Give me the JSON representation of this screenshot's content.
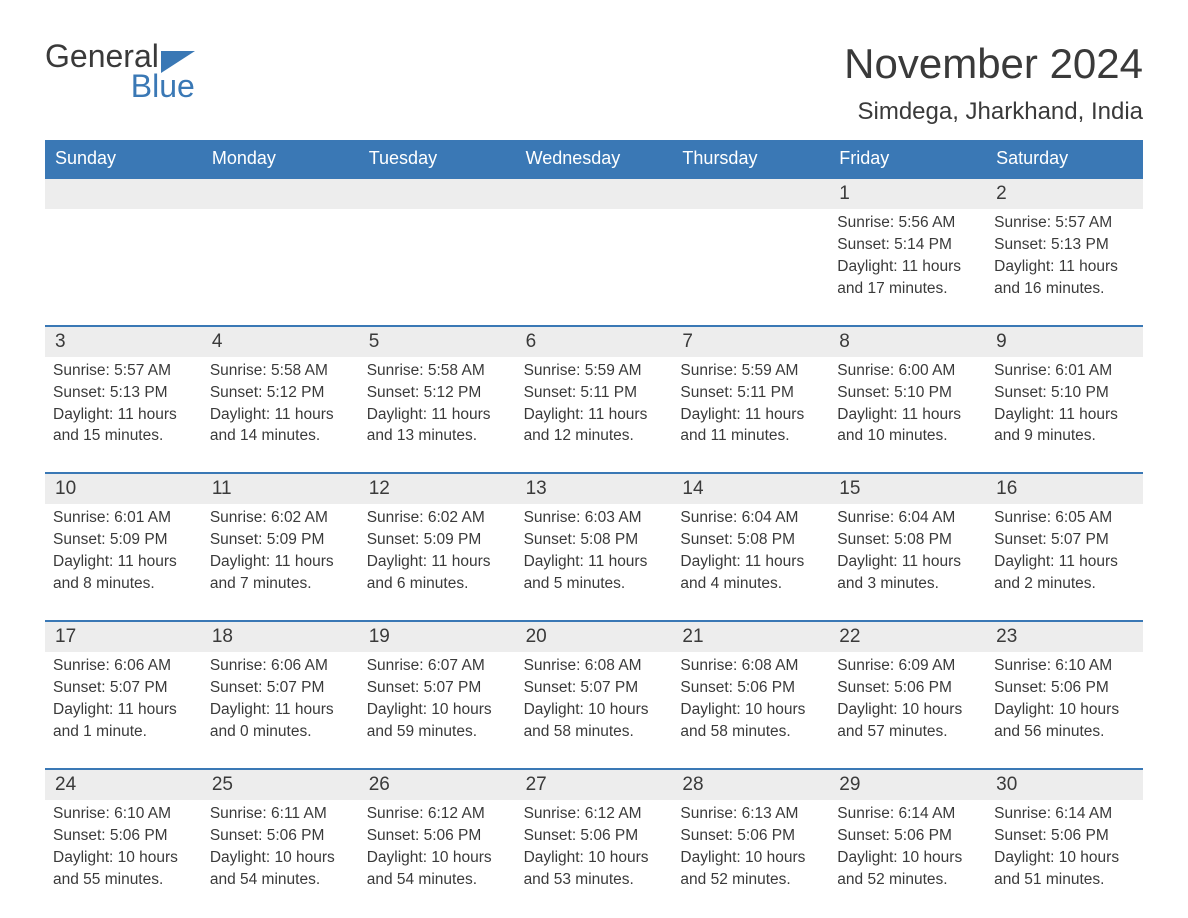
{
  "logo": {
    "word1": "General",
    "word2": "Blue",
    "icon_color": "#3a78b5"
  },
  "title": "November 2024",
  "location": "Simdega, Jharkhand, India",
  "colors": {
    "header_bg": "#3a78b5",
    "header_text": "#ffffff",
    "daynum_bg": "#ededed",
    "text": "#3a3a3a",
    "week_border": "#3a78b5",
    "page_bg": "#ffffff"
  },
  "day_names": [
    "Sunday",
    "Monday",
    "Tuesday",
    "Wednesday",
    "Thursday",
    "Friday",
    "Saturday"
  ],
  "weeks": [
    [
      null,
      null,
      null,
      null,
      null,
      {
        "n": "1",
        "sr": "Sunrise: 5:56 AM",
        "ss": "Sunset: 5:14 PM",
        "d1": "Daylight: 11 hours",
        "d2": "and 17 minutes."
      },
      {
        "n": "2",
        "sr": "Sunrise: 5:57 AM",
        "ss": "Sunset: 5:13 PM",
        "d1": "Daylight: 11 hours",
        "d2": "and 16 minutes."
      }
    ],
    [
      {
        "n": "3",
        "sr": "Sunrise: 5:57 AM",
        "ss": "Sunset: 5:13 PM",
        "d1": "Daylight: 11 hours",
        "d2": "and 15 minutes."
      },
      {
        "n": "4",
        "sr": "Sunrise: 5:58 AM",
        "ss": "Sunset: 5:12 PM",
        "d1": "Daylight: 11 hours",
        "d2": "and 14 minutes."
      },
      {
        "n": "5",
        "sr": "Sunrise: 5:58 AM",
        "ss": "Sunset: 5:12 PM",
        "d1": "Daylight: 11 hours",
        "d2": "and 13 minutes."
      },
      {
        "n": "6",
        "sr": "Sunrise: 5:59 AM",
        "ss": "Sunset: 5:11 PM",
        "d1": "Daylight: 11 hours",
        "d2": "and 12 minutes."
      },
      {
        "n": "7",
        "sr": "Sunrise: 5:59 AM",
        "ss": "Sunset: 5:11 PM",
        "d1": "Daylight: 11 hours",
        "d2": "and 11 minutes."
      },
      {
        "n": "8",
        "sr": "Sunrise: 6:00 AM",
        "ss": "Sunset: 5:10 PM",
        "d1": "Daylight: 11 hours",
        "d2": "and 10 minutes."
      },
      {
        "n": "9",
        "sr": "Sunrise: 6:01 AM",
        "ss": "Sunset: 5:10 PM",
        "d1": "Daylight: 11 hours",
        "d2": "and 9 minutes."
      }
    ],
    [
      {
        "n": "10",
        "sr": "Sunrise: 6:01 AM",
        "ss": "Sunset: 5:09 PM",
        "d1": "Daylight: 11 hours",
        "d2": "and 8 minutes."
      },
      {
        "n": "11",
        "sr": "Sunrise: 6:02 AM",
        "ss": "Sunset: 5:09 PM",
        "d1": "Daylight: 11 hours",
        "d2": "and 7 minutes."
      },
      {
        "n": "12",
        "sr": "Sunrise: 6:02 AM",
        "ss": "Sunset: 5:09 PM",
        "d1": "Daylight: 11 hours",
        "d2": "and 6 minutes."
      },
      {
        "n": "13",
        "sr": "Sunrise: 6:03 AM",
        "ss": "Sunset: 5:08 PM",
        "d1": "Daylight: 11 hours",
        "d2": "and 5 minutes."
      },
      {
        "n": "14",
        "sr": "Sunrise: 6:04 AM",
        "ss": "Sunset: 5:08 PM",
        "d1": "Daylight: 11 hours",
        "d2": "and 4 minutes."
      },
      {
        "n": "15",
        "sr": "Sunrise: 6:04 AM",
        "ss": "Sunset: 5:08 PM",
        "d1": "Daylight: 11 hours",
        "d2": "and 3 minutes."
      },
      {
        "n": "16",
        "sr": "Sunrise: 6:05 AM",
        "ss": "Sunset: 5:07 PM",
        "d1": "Daylight: 11 hours",
        "d2": "and 2 minutes."
      }
    ],
    [
      {
        "n": "17",
        "sr": "Sunrise: 6:06 AM",
        "ss": "Sunset: 5:07 PM",
        "d1": "Daylight: 11 hours",
        "d2": "and 1 minute."
      },
      {
        "n": "18",
        "sr": "Sunrise: 6:06 AM",
        "ss": "Sunset: 5:07 PM",
        "d1": "Daylight: 11 hours",
        "d2": "and 0 minutes."
      },
      {
        "n": "19",
        "sr": "Sunrise: 6:07 AM",
        "ss": "Sunset: 5:07 PM",
        "d1": "Daylight: 10 hours",
        "d2": "and 59 minutes."
      },
      {
        "n": "20",
        "sr": "Sunrise: 6:08 AM",
        "ss": "Sunset: 5:07 PM",
        "d1": "Daylight: 10 hours",
        "d2": "and 58 minutes."
      },
      {
        "n": "21",
        "sr": "Sunrise: 6:08 AM",
        "ss": "Sunset: 5:06 PM",
        "d1": "Daylight: 10 hours",
        "d2": "and 58 minutes."
      },
      {
        "n": "22",
        "sr": "Sunrise: 6:09 AM",
        "ss": "Sunset: 5:06 PM",
        "d1": "Daylight: 10 hours",
        "d2": "and 57 minutes."
      },
      {
        "n": "23",
        "sr": "Sunrise: 6:10 AM",
        "ss": "Sunset: 5:06 PM",
        "d1": "Daylight: 10 hours",
        "d2": "and 56 minutes."
      }
    ],
    [
      {
        "n": "24",
        "sr": "Sunrise: 6:10 AM",
        "ss": "Sunset: 5:06 PM",
        "d1": "Daylight: 10 hours",
        "d2": "and 55 minutes."
      },
      {
        "n": "25",
        "sr": "Sunrise: 6:11 AM",
        "ss": "Sunset: 5:06 PM",
        "d1": "Daylight: 10 hours",
        "d2": "and 54 minutes."
      },
      {
        "n": "26",
        "sr": "Sunrise: 6:12 AM",
        "ss": "Sunset: 5:06 PM",
        "d1": "Daylight: 10 hours",
        "d2": "and 54 minutes."
      },
      {
        "n": "27",
        "sr": "Sunrise: 6:12 AM",
        "ss": "Sunset: 5:06 PM",
        "d1": "Daylight: 10 hours",
        "d2": "and 53 minutes."
      },
      {
        "n": "28",
        "sr": "Sunrise: 6:13 AM",
        "ss": "Sunset: 5:06 PM",
        "d1": "Daylight: 10 hours",
        "d2": "and 52 minutes."
      },
      {
        "n": "29",
        "sr": "Sunrise: 6:14 AM",
        "ss": "Sunset: 5:06 PM",
        "d1": "Daylight: 10 hours",
        "d2": "and 52 minutes."
      },
      {
        "n": "30",
        "sr": "Sunrise: 6:14 AM",
        "ss": "Sunset: 5:06 PM",
        "d1": "Daylight: 10 hours",
        "d2": "and 51 minutes."
      }
    ]
  ]
}
